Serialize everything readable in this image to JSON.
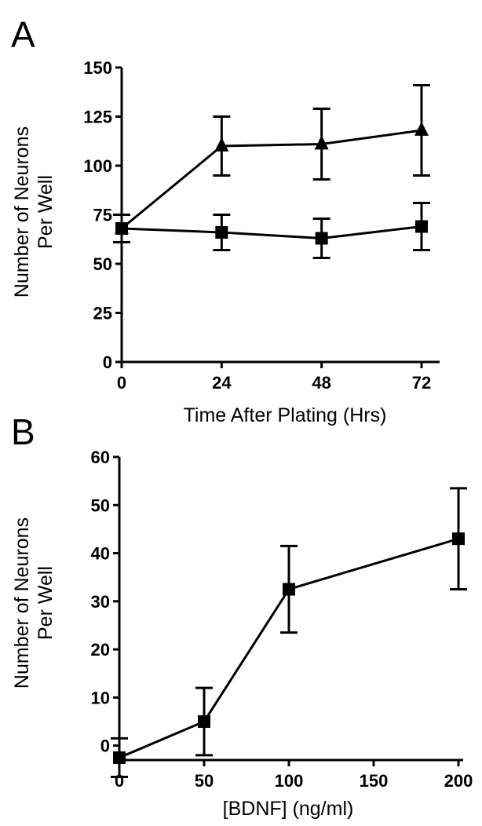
{
  "chart_data": [
    {
      "panel": "A",
      "type": "line",
      "xlabel": "Time After Plating (Hrs)",
      "ylabel_lines": [
        "Number of Neurons",
        "Per Well"
      ],
      "x": [
        0,
        24,
        48,
        72
      ],
      "xticks": [
        "0",
        "24",
        "48",
        "72"
      ],
      "xlim": [
        0,
        72
      ],
      "yticks": [
        "0",
        "25",
        "50",
        "75",
        "100",
        "125",
        "150"
      ],
      "ylim": [
        0,
        150
      ],
      "series": [
        {
          "marker": "triangle",
          "values": [
            68,
            110,
            111,
            118
          ],
          "err": [
            7,
            15,
            18,
            23
          ]
        },
        {
          "marker": "square",
          "values": [
            68,
            66,
            63,
            69
          ],
          "err": [
            7,
            9,
            10,
            12
          ]
        }
      ]
    },
    {
      "panel": "B",
      "type": "line",
      "xlabel": "[BDNF] (ng/ml)",
      "ylabel_lines": [
        "Number of Neurons",
        "Per Well"
      ],
      "x": [
        0,
        50,
        100,
        200
      ],
      "x_positions": [
        0,
        1,
        2,
        4
      ],
      "xticks": [
        "0",
        "50",
        "100",
        "150",
        "200"
      ],
      "xtick_positions": [
        0,
        1,
        2,
        3,
        4
      ],
      "yticks": [
        "0",
        "10",
        "20",
        "30",
        "40",
        "50",
        "60"
      ],
      "ylim": [
        -3,
        60
      ],
      "series": [
        {
          "marker": "square",
          "values": [
            -2.5,
            5,
            32.5,
            43
          ],
          "err": [
            4,
            7,
            9,
            10.5
          ]
        }
      ]
    }
  ]
}
